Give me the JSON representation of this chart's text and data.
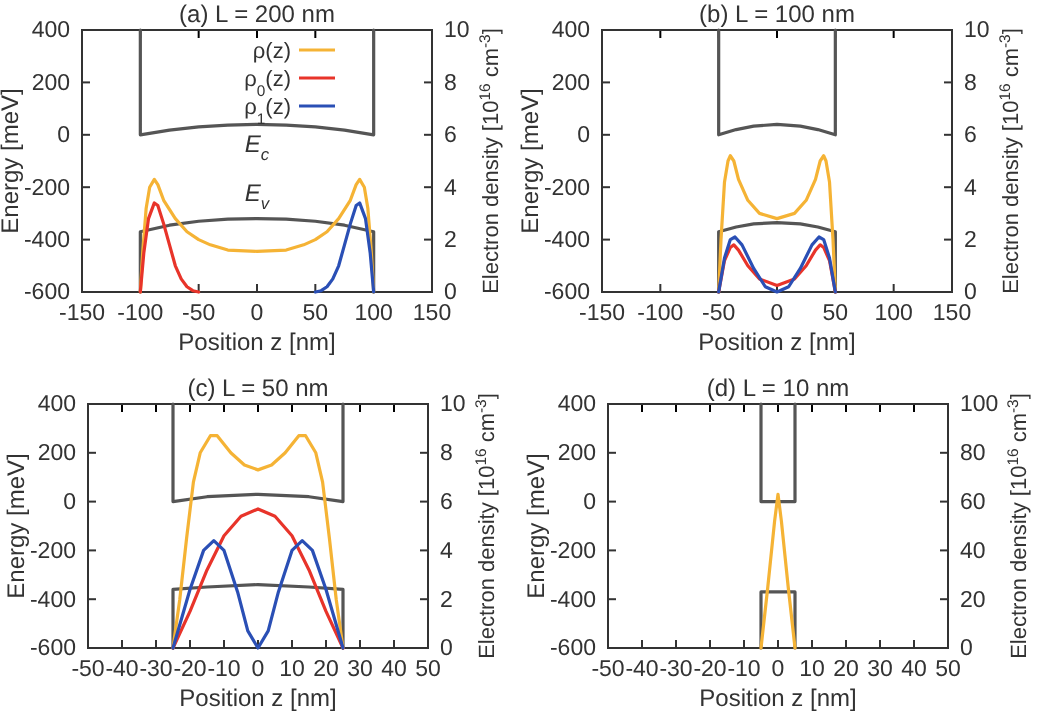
{
  "chart_data": [
    {
      "type": "line",
      "title": "(a) L = 200 nm",
      "xlabel": "Position z [nm]",
      "ylabel": "Energy [meV]",
      "y2label": "Electron density [10$^{16}$ cm$^{-3}$]",
      "xlim": [
        -150,
        150
      ],
      "xticks": [
        -150,
        -100,
        -50,
        0,
        50,
        100,
        150
      ],
      "ylim": [
        -600,
        400
      ],
      "yticks": [
        -600,
        -400,
        -200,
        0,
        200,
        400
      ],
      "y2lim": [
        0,
        10
      ],
      "y2ticks": [
        0,
        2,
        4,
        6,
        8,
        10
      ],
      "legend": "top",
      "grid": false,
      "annotations": [
        "E$_{c}$",
        "E$_{v}$"
      ],
      "series": [
        {
          "color": "#555555",
          "x": [
            -100,
            -100,
            -75,
            -50,
            -25,
            0,
            25,
            50,
            75,
            100,
            100
          ],
          "values": [
            400,
            0,
            18,
            30,
            37,
            40,
            37,
            30,
            18,
            0,
            400
          ]
        },
        {
          "color": "#555555",
          "x": [
            -100,
            -100,
            -75,
            -50,
            -25,
            0,
            25,
            50,
            75,
            100,
            100
          ],
          "values": [
            -600,
            -370,
            -345,
            -330,
            -322,
            -320,
            -322,
            -330,
            -345,
            -370,
            -600
          ]
        },
        {
          "name": "ρ(z)",
          "axis": "y2",
          "color": "#f5b335",
          "x": [
            -100,
            -98,
            -95,
            -92,
            -88,
            -85,
            -80,
            -70,
            -60,
            -50,
            -40,
            -25,
            0,
            25,
            40,
            50,
            60,
            70,
            80,
            85,
            88,
            92,
            95,
            98,
            100
          ],
          "values": [
            0,
            1.5,
            3.2,
            4.0,
            4.3,
            4.1,
            3.5,
            2.8,
            2.3,
            2.0,
            1.8,
            1.6,
            1.55,
            1.6,
            1.8,
            2.0,
            2.3,
            2.8,
            3.5,
            4.1,
            4.3,
            4.0,
            3.2,
            1.5,
            0
          ]
        },
        {
          "name": "ρ$_{0}$(z)",
          "axis": "y2",
          "color": "#e8342a",
          "x": [
            -100,
            -97,
            -93,
            -88,
            -85,
            -80,
            -75,
            -70,
            -65,
            -60,
            -55,
            -50
          ],
          "values": [
            0,
            1.5,
            2.8,
            3.4,
            3.3,
            2.6,
            1.8,
            1.0,
            0.5,
            0.2,
            0.05,
            0
          ]
        },
        {
          "name": "ρ$_{1}$(z)",
          "axis": "y2",
          "color": "#2a4fb5",
          "x": [
            50,
            55,
            60,
            65,
            70,
            75,
            80,
            85,
            88,
            93,
            97,
            100
          ],
          "values": [
            0,
            0.05,
            0.2,
            0.5,
            1.0,
            1.8,
            2.6,
            3.3,
            3.4,
            2.8,
            1.5,
            0
          ]
        }
      ]
    },
    {
      "type": "line",
      "title": "(b) L = 100 nm",
      "xlabel": "Position z [nm]",
      "ylabel": "Energy [meV]",
      "y2label": "Electron density [10$^{16}$ cm$^{-3}$]",
      "xlim": [
        -150,
        150
      ],
      "xticks": [
        -150,
        -100,
        -50,
        0,
        50,
        100,
        150
      ],
      "ylim": [
        -600,
        400
      ],
      "yticks": [
        -600,
        -400,
        -200,
        0,
        200,
        400
      ],
      "y2lim": [
        0,
        10
      ],
      "y2ticks": [
        0,
        2,
        4,
        6,
        8,
        10
      ],
      "grid": false,
      "series": [
        {
          "color": "#555555",
          "x": [
            -50,
            -50,
            -35,
            -20,
            0,
            20,
            35,
            50,
            50
          ],
          "values": [
            400,
            0,
            20,
            33,
            40,
            33,
            20,
            0,
            400
          ]
        },
        {
          "color": "#555555",
          "x": [
            -50,
            -50,
            -35,
            -20,
            0,
            20,
            35,
            50,
            50
          ],
          "values": [
            -600,
            -370,
            -352,
            -340,
            -335,
            -340,
            -352,
            -370,
            -600
          ]
        },
        {
          "axis": "y2",
          "color": "#f5b335",
          "x": [
            -50,
            -48,
            -45,
            -42,
            -40,
            -37,
            -33,
            -25,
            -15,
            0,
            15,
            25,
            33,
            37,
            40,
            42,
            45,
            48,
            50
          ],
          "values": [
            0,
            2,
            4.2,
            5.0,
            5.2,
            5.0,
            4.3,
            3.5,
            3.0,
            2.8,
            3.0,
            3.5,
            4.3,
            5.0,
            5.2,
            5.0,
            4.2,
            2,
            0
          ]
        },
        {
          "axis": "y2",
          "color": "#e8342a",
          "x": [
            -50,
            -45,
            -40,
            -37,
            -33,
            -25,
            -15,
            0,
            15,
            25,
            33,
            37,
            40,
            45,
            50
          ],
          "values": [
            0,
            1.2,
            1.7,
            1.8,
            1.6,
            1.0,
            0.5,
            0.25,
            0.5,
            1.0,
            1.6,
            1.8,
            1.7,
            1.2,
            0
          ]
        },
        {
          "axis": "y2",
          "color": "#2a4fb5",
          "x": [
            -50,
            -45,
            -40,
            -36,
            -30,
            -20,
            -10,
            0,
            10,
            20,
            30,
            36,
            40,
            45,
            50
          ],
          "values": [
            0,
            1.3,
            2.0,
            2.1,
            1.8,
            0.9,
            0.2,
            0,
            0.2,
            0.9,
            1.8,
            2.1,
            2.0,
            1.3,
            0
          ]
        }
      ]
    },
    {
      "type": "line",
      "title": "(c) L = 50 nm",
      "xlabel": "Position z [nm]",
      "ylabel": "Energy [meV]",
      "y2label": "Electron density [10$^{16}$ cm$^{-3}$]",
      "xlim": [
        -50,
        50
      ],
      "xticks": [
        -50,
        -40,
        -30,
        -20,
        -10,
        0,
        10,
        20,
        30,
        40,
        50
      ],
      "ylim": [
        -600,
        400
      ],
      "yticks": [
        -600,
        -400,
        -200,
        0,
        200,
        400
      ],
      "y2lim": [
        0,
        10
      ],
      "y2ticks": [
        0,
        2,
        4,
        6,
        8,
        10
      ],
      "grid": false,
      "series": [
        {
          "color": "#555555",
          "x": [
            -25,
            -25,
            -15,
            0,
            15,
            25,
            25
          ],
          "values": [
            400,
            0,
            20,
            30,
            20,
            0,
            400
          ]
        },
        {
          "color": "#555555",
          "x": [
            -25,
            -25,
            -15,
            0,
            15,
            25,
            25
          ],
          "values": [
            -600,
            -360,
            -350,
            -340,
            -350,
            -360,
            -600
          ]
        },
        {
          "axis": "y2",
          "color": "#f5b335",
          "x": [
            -25,
            -23,
            -21,
            -19,
            -17,
            -14,
            -12,
            -8,
            -4,
            0,
            4,
            8,
            12,
            14,
            17,
            19,
            21,
            23,
            25
          ],
          "values": [
            0,
            2,
            4.5,
            6.8,
            8.0,
            8.7,
            8.7,
            8.0,
            7.5,
            7.3,
            7.5,
            8.0,
            8.7,
            8.7,
            8.0,
            6.8,
            4.5,
            2,
            0
          ]
        },
        {
          "axis": "y2",
          "color": "#e8342a",
          "x": [
            -25,
            -20,
            -15,
            -10,
            -5,
            0,
            5,
            10,
            15,
            20,
            25
          ],
          "values": [
            0,
            1.5,
            3.2,
            4.6,
            5.4,
            5.7,
            5.4,
            4.6,
            3.2,
            1.5,
            0
          ]
        },
        {
          "axis": "y2",
          "color": "#2a4fb5",
          "x": [
            -25,
            -20,
            -16,
            -13,
            -10,
            -6,
            -3,
            0,
            3,
            6,
            10,
            13,
            16,
            20,
            25
          ],
          "values": [
            0,
            2.4,
            4.0,
            4.4,
            4.0,
            2.3,
            0.7,
            0,
            0.7,
            2.3,
            4.0,
            4.4,
            4.0,
            2.4,
            0
          ]
        }
      ]
    },
    {
      "type": "line",
      "title": "(d) L = 10 nm",
      "xlabel": "Position z [nm]",
      "ylabel": "Energy [meV]",
      "y2label": "Electron density [10$^{16}$ cm$^{-3}$]",
      "xlim": [
        -50,
        50
      ],
      "xticks": [
        -50,
        -40,
        -30,
        -20,
        -10,
        0,
        10,
        20,
        30,
        40,
        50
      ],
      "ylim": [
        -600,
        400
      ],
      "yticks": [
        -600,
        -400,
        -200,
        0,
        200,
        400
      ],
      "y2lim": [
        0,
        100
      ],
      "y2ticks": [
        0,
        20,
        40,
        60,
        80,
        100
      ],
      "grid": false,
      "series": [
        {
          "color": "#555555",
          "x": [
            -5,
            -5,
            5,
            5
          ],
          "values": [
            400,
            0,
            0,
            400
          ]
        },
        {
          "color": "#555555",
          "x": [
            -5,
            -5,
            5,
            5
          ],
          "values": [
            -600,
            -370,
            -370,
            -600
          ]
        },
        {
          "axis": "y2",
          "color": "#f5b335",
          "x": [
            -5,
            -3,
            -1,
            0,
            1,
            3,
            5
          ],
          "values": [
            0,
            25,
            52,
            63,
            52,
            25,
            0
          ]
        }
      ]
    }
  ]
}
